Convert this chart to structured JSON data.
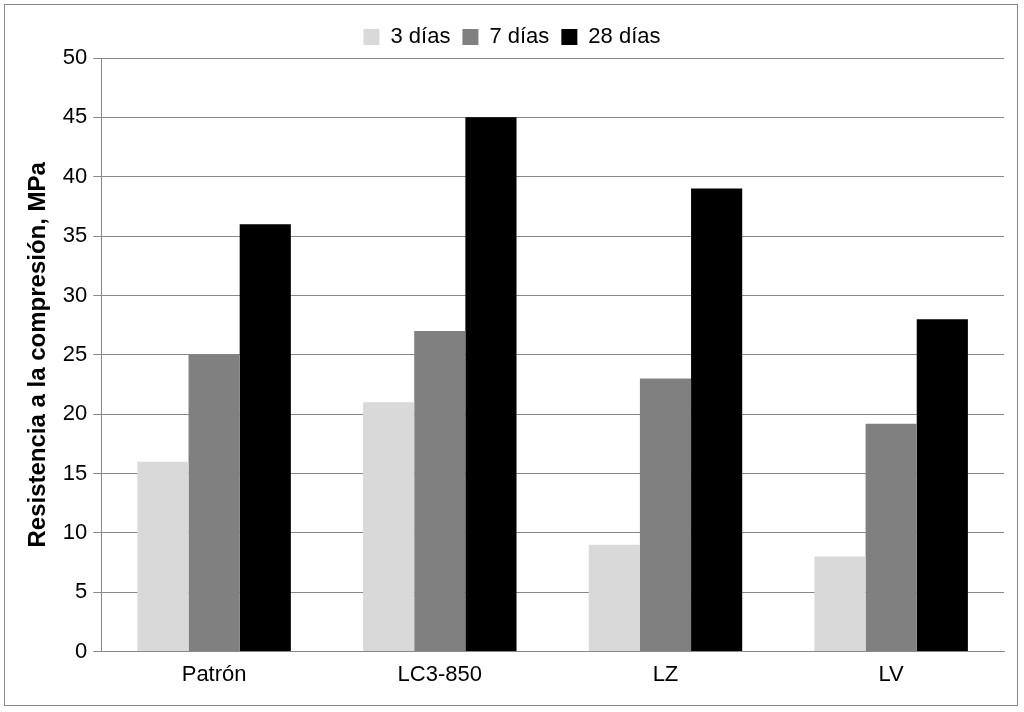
{
  "chart_data": {
    "type": "bar",
    "ylabel": "Resistencia a la compresión, MPa",
    "categories": [
      "Patrón",
      "LC3-850",
      "LZ",
      "LV"
    ],
    "series": [
      {
        "name": "3 días",
        "color": "#d9d9d9",
        "values": [
          16,
          21,
          9,
          8
        ]
      },
      {
        "name": "7 días",
        "color": "#808080",
        "values": [
          25,
          27,
          23,
          19.2
        ]
      },
      {
        "name": "28 días",
        "color": "#000000",
        "values": [
          36,
          45,
          39,
          28
        ]
      }
    ],
    "ylim": [
      0,
      50
    ],
    "yticks": [
      0,
      5,
      10,
      15,
      20,
      25,
      30,
      35,
      40,
      45,
      50
    ],
    "grid": "y",
    "legend": "top"
  }
}
